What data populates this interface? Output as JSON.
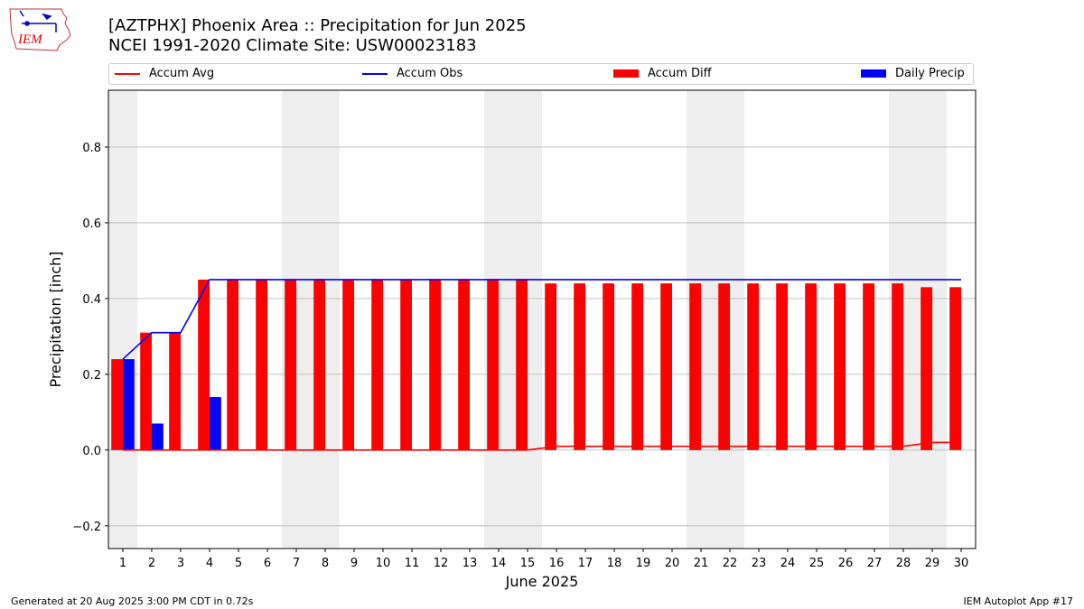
{
  "header": {
    "title_line1": "[AZTPHX] Phoenix Area :: Precipitation for Jun 2025",
    "title_line2": "NCEI 1991-2020 Climate Site: USW00023183",
    "logo_text": "IEM"
  },
  "footer": {
    "generated": "Generated at 20 Aug 2025 3:00 PM CDT in 0.72s",
    "app": "IEM Autoplot App #17"
  },
  "colors": {
    "accum_avg": "#ff0000",
    "accum_obs": "#0000ff",
    "accum_diff": "#ff0000",
    "daily_precip": "#0000ff",
    "weekend_shade": "#eeeeee",
    "grid": "#b0b0b0"
  },
  "chart_data": {
    "type": "bar",
    "xlabel": "June 2025",
    "ylabel": "Precipitation [inch]",
    "ylim": [
      -0.26,
      0.95
    ],
    "yticks": [
      -0.2,
      0.0,
      0.2,
      0.4,
      0.6,
      0.8
    ],
    "ytick_labels": [
      "−0.2",
      "0.0",
      "0.2",
      "0.4",
      "0.6",
      "0.8"
    ],
    "grid": "horizontal",
    "legend_placement": "top",
    "days": [
      1,
      2,
      3,
      4,
      5,
      6,
      7,
      8,
      9,
      10,
      11,
      12,
      13,
      14,
      15,
      16,
      17,
      18,
      19,
      20,
      21,
      22,
      23,
      24,
      25,
      26,
      27,
      28,
      29,
      30
    ],
    "shaded_days": [
      1,
      7,
      8,
      14,
      15,
      21,
      22,
      28,
      29
    ],
    "series": [
      {
        "name": "Accum Avg",
        "kind": "line",
        "values": [
          0,
          0,
          0,
          0,
          0,
          0,
          0,
          0,
          0,
          0,
          0,
          0,
          0,
          0,
          0,
          0.01,
          0.01,
          0.01,
          0.01,
          0.01,
          0.01,
          0.01,
          0.01,
          0.01,
          0.01,
          0.01,
          0.01,
          0.01,
          0.02,
          0.02
        ]
      },
      {
        "name": "Accum Obs",
        "kind": "line",
        "values": [
          0.24,
          0.31,
          0.31,
          0.45,
          0.45,
          0.45,
          0.45,
          0.45,
          0.45,
          0.45,
          0.45,
          0.45,
          0.45,
          0.45,
          0.45,
          0.45,
          0.45,
          0.45,
          0.45,
          0.45,
          0.45,
          0.45,
          0.45,
          0.45,
          0.45,
          0.45,
          0.45,
          0.45,
          0.45,
          0.45
        ]
      },
      {
        "name": "Accum Diff",
        "kind": "bar",
        "values": [
          0.24,
          0.31,
          0.31,
          0.45,
          0.45,
          0.45,
          0.45,
          0.45,
          0.45,
          0.45,
          0.45,
          0.45,
          0.45,
          0.45,
          0.45,
          0.44,
          0.44,
          0.44,
          0.44,
          0.44,
          0.44,
          0.44,
          0.44,
          0.44,
          0.44,
          0.44,
          0.44,
          0.44,
          0.43,
          0.43
        ]
      },
      {
        "name": "Daily Precip",
        "kind": "bar",
        "values": [
          0.24,
          0.07,
          0,
          0.14,
          0,
          0,
          0,
          0,
          0,
          0,
          0,
          0,
          0,
          0,
          0,
          0,
          0,
          0,
          0,
          0,
          0,
          0,
          0,
          0,
          0,
          0,
          0,
          0,
          0,
          0
        ]
      }
    ]
  }
}
